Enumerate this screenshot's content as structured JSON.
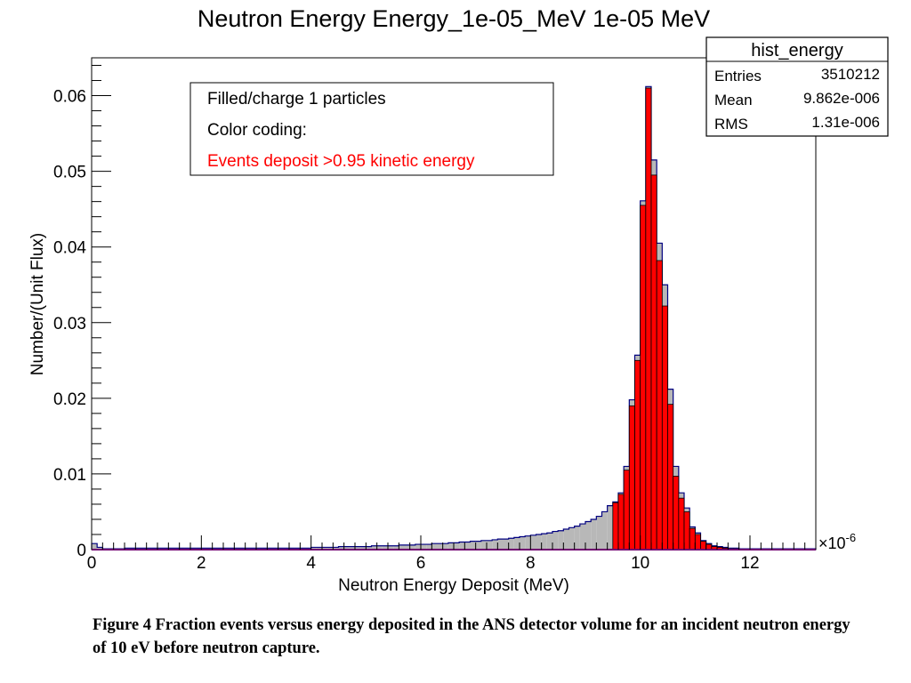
{
  "chart_data": {
    "type": "bar",
    "title": "Neutron Energy Energy_1e-05_MeV 1e-05 MeV",
    "xlabel": "Neutron Energy Deposit (MeV)",
    "ylabel": "Number/(Unit Flux)",
    "x_exponent_label": "×10",
    "x_exponent_power": "-6",
    "xlim": [
      0,
      13.2
    ],
    "ylim": [
      0,
      0.065
    ],
    "x_ticks": [
      0,
      2,
      4,
      6,
      8,
      10,
      12
    ],
    "y_ticks": [
      0,
      0.01,
      0.02,
      0.03,
      0.04,
      0.05,
      0.06
    ],
    "y_tick_labels": [
      "0",
      "0.01",
      "0.02",
      "0.03",
      "0.04",
      "0.05",
      "0.06"
    ],
    "stats_box": {
      "name": "hist_energy",
      "rows": [
        {
          "label": "Entries",
          "value": "3510212"
        },
        {
          "label": "Mean",
          "value": "9.862e-006"
        },
        {
          "label": "RMS",
          "value": "1.31e-006"
        }
      ]
    },
    "legend": {
      "placement": "top-left",
      "lines": [
        {
          "text": "Filled/charge 1 particles",
          "color": "#000000"
        },
        {
          "text": "Color coding:",
          "color": "#000000"
        },
        {
          "text": "Events deposit >0.95 kinetic energy",
          "color": "#ff0000"
        }
      ]
    },
    "colors": {
      "all_events_fill": "#b8b8b8",
      "all_events_line": "#000080",
      "high_deposit_fill": "#ff0000",
      "baseline": "#e000e0"
    },
    "series": [
      {
        "name": "Filled/charge 1 particles",
        "bin_width": 0.1,
        "bin_start": [
          0.0,
          0.1,
          0.2,
          0.3,
          0.4,
          0.5,
          0.6,
          0.7,
          0.8,
          0.9,
          1.0,
          1.1,
          1.2,
          1.3,
          1.4,
          1.5,
          1.6,
          1.7,
          1.8,
          1.9,
          2.0,
          2.1,
          2.2,
          2.3,
          2.4,
          2.5,
          2.6,
          2.7,
          2.8,
          2.9,
          3.0,
          3.1,
          3.2,
          3.3,
          3.4,
          3.5,
          3.6,
          3.7,
          3.8,
          3.9,
          4.0,
          4.1,
          4.2,
          4.3,
          4.4,
          4.5,
          4.6,
          4.7,
          4.8,
          4.9,
          5.0,
          5.1,
          5.2,
          5.3,
          5.4,
          5.5,
          5.6,
          5.7,
          5.8,
          5.9,
          6.0,
          6.1,
          6.2,
          6.3,
          6.4,
          6.5,
          6.6,
          6.7,
          6.8,
          6.9,
          7.0,
          7.1,
          7.2,
          7.3,
          7.4,
          7.5,
          7.6,
          7.7,
          7.8,
          7.9,
          8.0,
          8.1,
          8.2,
          8.3,
          8.4,
          8.5,
          8.6,
          8.7,
          8.8,
          8.9,
          9.0,
          9.1,
          9.2,
          9.3,
          9.4,
          9.5,
          9.6,
          9.7,
          9.8,
          9.9,
          10.0,
          10.1,
          10.2,
          10.3,
          10.4,
          10.5,
          10.6,
          10.7,
          10.8,
          10.9,
          11.0,
          11.1,
          11.2,
          11.3,
          11.4,
          11.5,
          11.6,
          11.7,
          11.8,
          11.9,
          12.0,
          12.1,
          12.2,
          12.3,
          12.4,
          12.5,
          12.6,
          12.7,
          12.8,
          12.9,
          13.0,
          13.1
        ],
        "values": [
          0.0008,
          0.0003,
          0.0001,
          0.0001,
          0.0001,
          0.0001,
          0.0002,
          0.0002,
          0.0002,
          0.0002,
          0.0002,
          0.0002,
          0.0002,
          0.0002,
          0.0002,
          0.0002,
          0.0002,
          0.0002,
          0.0002,
          0.0002,
          0.0002,
          0.0002,
          0.0002,
          0.0002,
          0.0002,
          0.0002,
          0.0002,
          0.0002,
          0.0002,
          0.0002,
          0.0002,
          0.0002,
          0.0002,
          0.0002,
          0.0002,
          0.0002,
          0.0002,
          0.0002,
          0.0002,
          0.0002,
          0.0003,
          0.0003,
          0.0003,
          0.0003,
          0.0003,
          0.0004,
          0.0004,
          0.0004,
          0.0004,
          0.0004,
          0.0004,
          0.0005,
          0.0005,
          0.0005,
          0.0005,
          0.0005,
          0.0006,
          0.0006,
          0.0006,
          0.0007,
          0.0007,
          0.0007,
          0.0008,
          0.0008,
          0.0008,
          0.0009,
          0.0009,
          0.001,
          0.001,
          0.0011,
          0.0011,
          0.0012,
          0.0012,
          0.0013,
          0.0014,
          0.0014,
          0.0015,
          0.0016,
          0.0017,
          0.0018,
          0.0019,
          0.002,
          0.0021,
          0.0022,
          0.0024,
          0.0025,
          0.0027,
          0.0029,
          0.0031,
          0.0034,
          0.0037,
          0.004,
          0.0044,
          0.005,
          0.0058,
          0.0063,
          0.0075,
          0.011,
          0.0198,
          0.0257,
          0.0461,
          0.0612,
          0.0515,
          0.0405,
          0.035,
          0.0212,
          0.011,
          0.0075,
          0.0055,
          0.003,
          0.0022,
          0.0012,
          0.0008,
          0.0005,
          0.0004,
          0.0003,
          0.0002,
          0.0002,
          0.0001,
          0.0001,
          0.0001,
          0.0001,
          0.0001,
          0.0001,
          0.0001,
          0.0001,
          0.0001,
          0.0001,
          0.0001,
          0.0001,
          0.0001,
          0.0001
        ]
      },
      {
        "name": "Events deposit >0.95 kinetic energy",
        "bin_width": 0.1,
        "bin_start": [
          9.5,
          9.6,
          9.7,
          9.8,
          9.9,
          10.0,
          10.1,
          10.2,
          10.3,
          10.4,
          10.5,
          10.6,
          10.7,
          10.8,
          10.9,
          11.0,
          11.1,
          11.2,
          11.3,
          11.4,
          11.5,
          11.6,
          11.7
        ],
        "values": [
          0.0062,
          0.0073,
          0.0105,
          0.019,
          0.025,
          0.0455,
          0.061,
          0.0495,
          0.0382,
          0.0322,
          0.0192,
          0.0097,
          0.0068,
          0.005,
          0.0028,
          0.002,
          0.0011,
          0.0007,
          0.0004,
          0.0003,
          0.0002,
          0.0001,
          0.0001
        ]
      }
    ]
  },
  "caption": "Figure 4 Fraction events versus energy deposited in the ANS detector volume for an incident neutron energy of 10 eV before neutron capture."
}
